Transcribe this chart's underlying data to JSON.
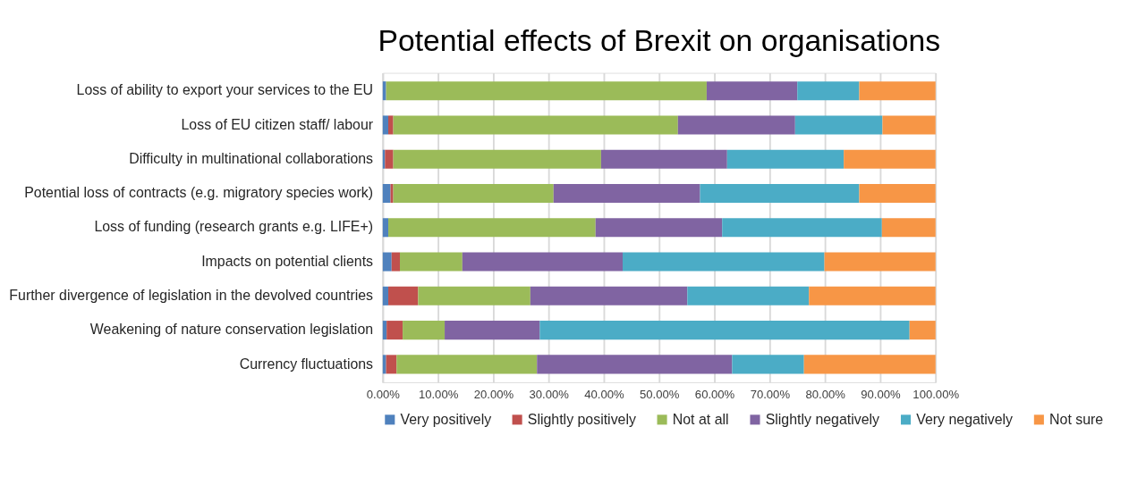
{
  "chart_data": {
    "type": "bar",
    "orientation": "horizontal",
    "stacked": true,
    "title": "Potential effects of Brexit on organisations",
    "categories": [
      "Loss of ability to export your services to the EU",
      "Loss of EU citizen staff/ labour",
      "Difficulty in multinational collaborations",
      "Potential loss of contracts (e.g. migratory species work)",
      "Loss of funding (research grants e.g. LIFE+)",
      "Impacts on potential clients",
      "Further divergence of legislation in the devolved countries",
      "Weakening of nature conservation legislation",
      "Currency fluctuations"
    ],
    "series": [
      {
        "name": "Very positively",
        "color": "#4f81bd",
        "values": [
          0.6,
          1.0,
          0.4,
          1.4,
          1.0,
          1.6,
          1.0,
          0.7,
          0.6
        ]
      },
      {
        "name": "Slightly positively",
        "color": "#c0504d",
        "values": [
          0,
          0.9,
          1.5,
          0.5,
          0,
          1.5,
          5.4,
          2.9,
          1.9
        ]
      },
      {
        "name": "Not at all",
        "color": "#9bbb59",
        "values": [
          58.0,
          51.5,
          37.6,
          29.0,
          37.5,
          11.3,
          20.3,
          7.6,
          25.4
        ]
      },
      {
        "name": "Slightly negatively",
        "color": "#8064a2",
        "values": [
          16.4,
          21.2,
          22.8,
          26.5,
          22.9,
          29.0,
          28.4,
          17.2,
          35.3
        ]
      },
      {
        "name": "Very negatively",
        "color": "#4bacc6",
        "values": [
          11.2,
          15.8,
          21.1,
          28.8,
          28.9,
          36.5,
          22.0,
          66.9,
          13.0
        ]
      },
      {
        "name": "Not sure",
        "color": "#f79646",
        "values": [
          13.8,
          9.6,
          16.6,
          13.8,
          9.7,
          20.1,
          22.9,
          4.7,
          23.8
        ]
      }
    ],
    "xlim": [
      0,
      100
    ],
    "xticks": [
      {
        "value": 0,
        "label": "0.00%"
      },
      {
        "value": 10,
        "label": "10.00%"
      },
      {
        "value": 20,
        "label": "20.00%"
      },
      {
        "value": 30,
        "label": "30.00%"
      },
      {
        "value": 40,
        "label": "40.00%"
      },
      {
        "value": 50,
        "label": "50.00%"
      },
      {
        "value": 60,
        "label": "60.00%"
      },
      {
        "value": 70,
        "label": "70.00%"
      },
      {
        "value": 80,
        "label": "80.00%"
      },
      {
        "value": 90,
        "label": "90.00%"
      },
      {
        "value": 100,
        "label": "100.00%"
      }
    ],
    "grid": "x",
    "legend": "bottom"
  }
}
